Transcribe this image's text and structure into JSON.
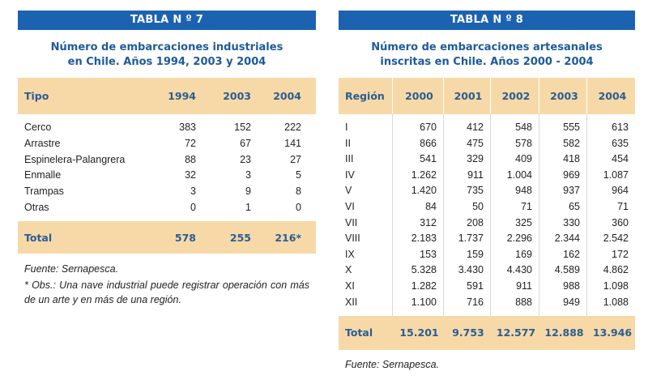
{
  "tabla7": {
    "banner": "TABLA N º 7",
    "title_line1": "Número de embarcaciones industriales",
    "title_line2": "en Chile. Años 1994, 2003 y 2004",
    "headers": [
      "Tipo",
      "1994",
      "2003",
      "2004"
    ],
    "rows": [
      [
        "Cerco",
        "383",
        "152",
        "222"
      ],
      [
        "Arrastre",
        "72",
        "67",
        "141"
      ],
      [
        "Espinelera-Palangrera",
        "88",
        "23",
        "27"
      ],
      [
        "Enmalle",
        "32",
        "3",
        "5"
      ],
      [
        "Trampas",
        "3",
        "9",
        "8"
      ],
      [
        "Otras",
        "0",
        "1",
        "0"
      ]
    ],
    "total": [
      "Total",
      "578",
      "255",
      "216*"
    ],
    "source": "Fuente: Sernapesca.",
    "note": "* Obs.: Una nave industrial puede registrar operación con más de un arte y en más de una región."
  },
  "tabla8": {
    "banner": "TABLA N º 8",
    "title_line1": "Número de embarcaciones artesanales",
    "title_line2": "inscritas en Chile. Años 2000 - 2004",
    "headers": [
      "Región",
      "2000",
      "2001",
      "2002",
      "2003",
      "2004"
    ],
    "rows": [
      [
        "I",
        "670",
        "412",
        "548",
        "555",
        "613"
      ],
      [
        "II",
        "866",
        "475",
        "578",
        "582",
        "635"
      ],
      [
        "III",
        "541",
        "329",
        "409",
        "418",
        "454"
      ],
      [
        "IV",
        "1.262",
        "911",
        "1.004",
        "969",
        "1.087"
      ],
      [
        "V",
        "1.420",
        "735",
        "948",
        "937",
        "964"
      ],
      [
        "VI",
        "84",
        "50",
        "71",
        "65",
        "71"
      ],
      [
        "VII",
        "312",
        "208",
        "325",
        "330",
        "360"
      ],
      [
        "VIII",
        "2.183",
        "1.737",
        "2.296",
        "2.344",
        "2.542"
      ],
      [
        "IX",
        "153",
        "159",
        "169",
        "162",
        "172"
      ],
      [
        "X",
        "5.328",
        "3.430",
        "4.430",
        "4.589",
        "4.862"
      ],
      [
        "XI",
        "1.282",
        "591",
        "911",
        "988",
        "1.098"
      ],
      [
        "XII",
        "1.100",
        "716",
        "888",
        "949",
        "1.088"
      ]
    ],
    "total": [
      "Total",
      "15.201",
      "9.753",
      "12.577",
      "12.888",
      "13.946"
    ],
    "source": "Fuente: Sernapesca."
  }
}
